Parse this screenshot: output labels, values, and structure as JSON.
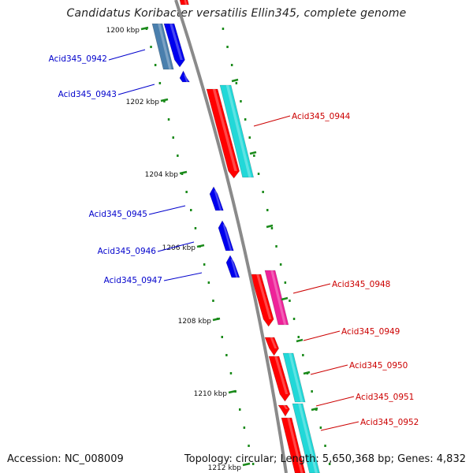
{
  "title": "Candidatus Koribacter versatilis Ellin345, complete genome",
  "accession": "Accession: NC_008009",
  "info": "Topology: circular; Length: 5,650,368 bp; Genes: 4,832",
  "colors": {
    "forward_label": "#cc0000",
    "reverse_label": "#0000cc",
    "forward_gene": "#ff0000",
    "reverse_gene": "#0000ee",
    "cyan_feature": "#22d8d8",
    "magenta_feature": "#ee2299",
    "steel_feature": "#4a7fad",
    "kbp_tick": "#1a8a1a",
    "backbone": "#888888"
  },
  "kbp_marks": [
    {
      "label": "1200 kbp"
    },
    {
      "label": "1202 kbp"
    },
    {
      "label": "1204 kbp"
    },
    {
      "label": "1206 kbp"
    },
    {
      "label": "1208 kbp"
    },
    {
      "label": "1210 kbp"
    },
    {
      "label": "1212 kbp"
    }
  ],
  "genes": [
    {
      "name": "Acid345_0942",
      "strand": "reverse"
    },
    {
      "name": "Acid345_0943",
      "strand": "reverse"
    },
    {
      "name": "Acid345_0944",
      "strand": "forward"
    },
    {
      "name": "Acid345_0945",
      "strand": "reverse"
    },
    {
      "name": "Acid345_0946",
      "strand": "reverse"
    },
    {
      "name": "Acid345_0947",
      "strand": "reverse"
    },
    {
      "name": "Acid345_0948",
      "strand": "forward"
    },
    {
      "name": "Acid345_0949",
      "strand": "forward"
    },
    {
      "name": "Acid345_0950",
      "strand": "forward"
    },
    {
      "name": "Acid345_0951",
      "strand": "forward"
    },
    {
      "name": "Acid345_0952",
      "strand": "forward"
    }
  ]
}
